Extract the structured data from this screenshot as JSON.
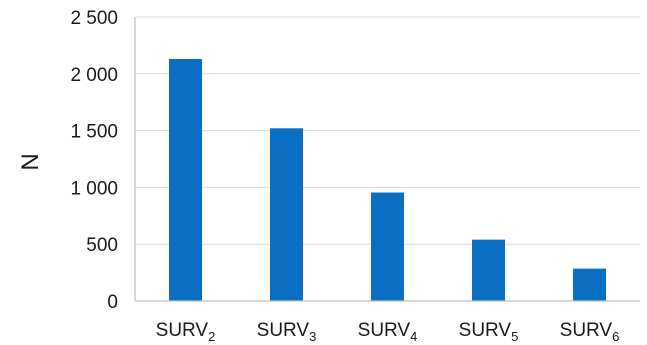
{
  "chart_data": {
    "type": "bar",
    "ylabel": "N",
    "xlabel": "",
    "title": "",
    "ylim": [
      0,
      2500
    ],
    "y_ticks": [
      0,
      500,
      1000,
      1500,
      2000,
      2500
    ],
    "y_tick_labels": [
      "0",
      "500",
      "1 000",
      "1 500",
      "2 000",
      "2 500"
    ],
    "categories": [
      {
        "base": "SURV",
        "sub": "2"
      },
      {
        "base": "SURV",
        "sub": "3"
      },
      {
        "base": "SURV",
        "sub": "4"
      },
      {
        "base": "SURV",
        "sub": "5"
      },
      {
        "base": "SURV",
        "sub": "6"
      }
    ],
    "values": [
      2130,
      1520,
      955,
      540,
      285
    ],
    "grid": true,
    "bar_color": "#0a6ec3"
  }
}
